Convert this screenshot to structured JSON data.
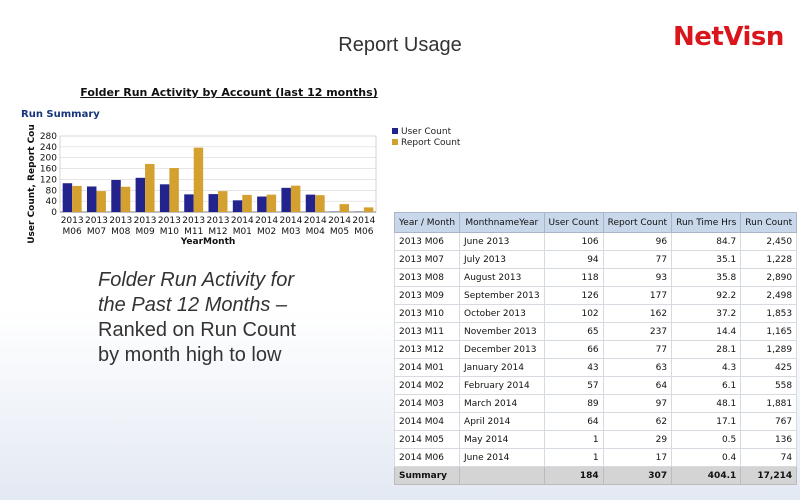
{
  "slide": {
    "title": "Report Usage",
    "logo": "NetVisn"
  },
  "caption": {
    "lines": [
      "Folder Run Activity for",
      "the Past 12 Months –",
      "Ranked on Run Count",
      "by month high to low"
    ]
  },
  "colors": {
    "user_count": "#23238e",
    "report_count": "#d4a130",
    "header_bg": "#c8d7ea",
    "title_blue": "#17347a",
    "logo_red": "#d9161c"
  },
  "chart_data": {
    "type": "bar",
    "title": "Folder Run Activity by Account (last 12 months)",
    "subtitle": "Run Summary",
    "xlabel": "YearMonth",
    "ylabel": "User Count, Report Cou",
    "ylim": [
      0,
      280
    ],
    "yticks": [
      0,
      40,
      80,
      120,
      160,
      200,
      240,
      280
    ],
    "categories": [
      "2013 M06",
      "2013 M07",
      "2013 M08",
      "2013 M09",
      "2013 M10",
      "2013 M11",
      "2013 M12",
      "2014 M01",
      "2014 M02",
      "2014 M03",
      "2014 M04",
      "2014 M05",
      "2014 M06"
    ],
    "series": [
      {
        "name": "User Count",
        "color": "#23238e",
        "values": [
          106,
          94,
          118,
          126,
          102,
          65,
          66,
          43,
          57,
          89,
          64,
          1,
          1
        ]
      },
      {
        "name": "Report Count",
        "color": "#d4a130",
        "values": [
          96,
          77,
          93,
          177,
          162,
          237,
          77,
          63,
          64,
          97,
          62,
          29,
          17
        ]
      }
    ],
    "legend_position": "right",
    "grid": true
  },
  "table": {
    "headers": [
      "Year / Month",
      "MonthnameYear",
      "User Count",
      "Report Count",
      "Run Time Hrs",
      "Run Count"
    ],
    "rows": [
      [
        "2013 M06",
        "June 2013",
        "106",
        "96",
        "84.7",
        "2,450"
      ],
      [
        "2013 M07",
        "July 2013",
        "94",
        "77",
        "35.1",
        "1,228"
      ],
      [
        "2013 M08",
        "August 2013",
        "118",
        "93",
        "35.8",
        "2,890"
      ],
      [
        "2013 M09",
        "September 2013",
        "126",
        "177",
        "92.2",
        "2,498"
      ],
      [
        "2013 M10",
        "October 2013",
        "102",
        "162",
        "37.2",
        "1,853"
      ],
      [
        "2013 M11",
        "November 2013",
        "65",
        "237",
        "14.4",
        "1,165"
      ],
      [
        "2013 M12",
        "December 2013",
        "66",
        "77",
        "28.1",
        "1,289"
      ],
      [
        "2014 M01",
        "January 2014",
        "43",
        "63",
        "4.3",
        "425"
      ],
      [
        "2014 M02",
        "February 2014",
        "57",
        "64",
        "6.1",
        "558"
      ],
      [
        "2014 M03",
        "March 2014",
        "89",
        "97",
        "48.1",
        "1,881"
      ],
      [
        "2014 M04",
        "April 2014",
        "64",
        "62",
        "17.1",
        "767"
      ],
      [
        "2014 M05",
        "May 2014",
        "1",
        "29",
        "0.5",
        "136"
      ],
      [
        "2014 M06",
        "June 2014",
        "1",
        "17",
        "0.4",
        "74"
      ]
    ],
    "summary": [
      "Summary",
      "",
      "184",
      "307",
      "404.1",
      "17,214"
    ]
  }
}
